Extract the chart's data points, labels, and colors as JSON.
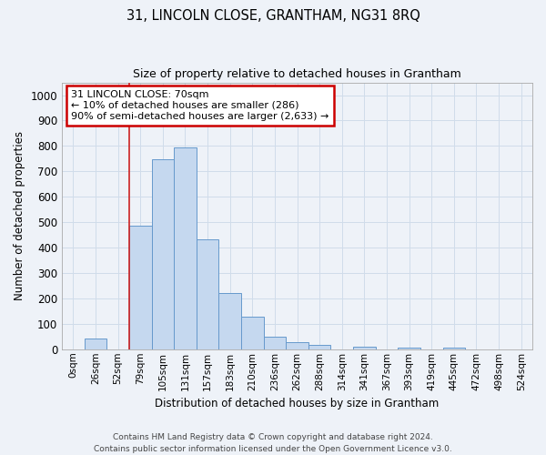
{
  "title": "31, LINCOLN CLOSE, GRANTHAM, NG31 8RQ",
  "subtitle": "Size of property relative to detached houses in Grantham",
  "xlabel": "Distribution of detached houses by size in Grantham",
  "ylabel": "Number of detached properties",
  "footnote1": "Contains HM Land Registry data © Crown copyright and database right 2024.",
  "footnote2": "Contains public sector information licensed under the Open Government Licence v3.0.",
  "bar_labels": [
    "0sqm",
    "26sqm",
    "52sqm",
    "79sqm",
    "105sqm",
    "131sqm",
    "157sqm",
    "183sqm",
    "210sqm",
    "236sqm",
    "262sqm",
    "288sqm",
    "314sqm",
    "341sqm",
    "367sqm",
    "393sqm",
    "419sqm",
    "445sqm",
    "472sqm",
    "498sqm",
    "524sqm"
  ],
  "bar_values": [
    0,
    42,
    0,
    487,
    749,
    793,
    434,
    221,
    128,
    50,
    29,
    17,
    0,
    9,
    0,
    8,
    0,
    8,
    0,
    0,
    0
  ],
  "bar_color": "#c5d8ef",
  "bar_edge_color": "#6699cc",
  "grid_color": "#d0dcea",
  "background_color": "#eef2f8",
  "red_line_x": 3.0,
  "annotation_text": "31 LINCOLN CLOSE: 70sqm\n← 10% of detached houses are smaller (286)\n90% of semi-detached houses are larger (2,633) →",
  "annotation_box_color": "#ffffff",
  "annotation_box_edge": "#cc0000",
  "ylim": [
    0,
    1050
  ],
  "yticks": [
    0,
    100,
    200,
    300,
    400,
    500,
    600,
    700,
    800,
    900,
    1000
  ]
}
